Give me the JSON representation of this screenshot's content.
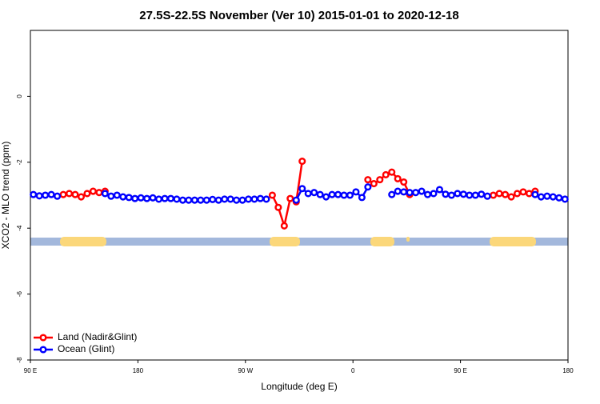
{
  "chart_data": {
    "type": "line",
    "title": "27.5S-22.5S November (Ver 10)   2015-01-01 to 2020-12-18",
    "xlabel": "Longitude (deg E)",
    "ylabel": "XCO2 - MLO trend (ppm)",
    "xlim": [
      90,
      540
    ],
    "ylim": [
      -8,
      2
    ],
    "xticks": [
      {
        "value": 90,
        "label": "90 E"
      },
      180,
      {
        "value": 270,
        "label": "90 W"
      },
      {
        "value": 360,
        "label": "0"
      },
      {
        "value": 450,
        "label": "90 E"
      },
      {
        "value": 540,
        "label": "180"
      }
    ],
    "yticks": [
      -8,
      -6,
      -4,
      -2,
      0
    ],
    "legend": "bottom-left",
    "x": [
      92.5,
      97.5,
      102.5,
      107.5,
      112.5,
      117.5,
      122.5,
      127.5,
      132.5,
      137.5,
      142.5,
      147.5,
      152.5,
      157.5,
      162.5,
      167.5,
      172.5,
      177.5,
      182.5,
      187.5,
      192.5,
      197.5,
      202.5,
      207.5,
      212.5,
      217.5,
      222.5,
      227.5,
      232.5,
      237.5,
      242.5,
      247.5,
      252.5,
      257.5,
      262.5,
      267.5,
      272.5,
      277.5,
      282.5,
      287.5,
      292.5,
      297.5,
      302.5,
      307.5,
      312.5,
      317.5,
      322.5,
      327.5,
      332.5,
      337.5,
      342.5,
      347.5,
      352.5,
      357.5,
      362.5,
      367.5,
      372.5,
      377.5,
      382.5,
      387.5,
      392.5,
      397.5,
      402.5,
      407.5,
      412.5,
      417.5,
      422.5,
      427.5,
      432.5,
      437.5,
      442.5,
      447.5,
      452.5,
      457.5,
      462.5,
      467.5,
      472.5,
      477.5,
      482.5,
      487.5,
      492.5,
      497.5,
      502.5,
      507.5,
      512.5,
      517.5,
      522.5,
      527.5,
      532.5,
      537.5
    ],
    "series": [
      {
        "name": "Land (Nadir&Glint)",
        "color": "#ff0000",
        "values": [
          null,
          null,
          null,
          null,
          null,
          -2.98,
          -2.95,
          -2.98,
          -3.05,
          -2.95,
          -2.88,
          -2.92,
          -2.88,
          null,
          null,
          null,
          null,
          null,
          null,
          null,
          null,
          null,
          null,
          null,
          null,
          null,
          null,
          null,
          null,
          null,
          null,
          null,
          null,
          null,
          null,
          null,
          null,
          null,
          null,
          null,
          -3.0,
          -3.37,
          -3.93,
          -3.1,
          -3.2,
          -1.97,
          null,
          null,
          null,
          null,
          null,
          null,
          null,
          null,
          null,
          null,
          -2.53,
          -2.65,
          -2.53,
          -2.38,
          -2.3,
          -2.5,
          -2.6,
          -2.98,
          null,
          null,
          null,
          null,
          null,
          null,
          null,
          null,
          null,
          null,
          null,
          null,
          null,
          -3.0,
          -2.95,
          -2.98,
          -3.05,
          -2.95,
          -2.9,
          -2.95,
          -2.88,
          null,
          null,
          null,
          null,
          null
        ]
      },
      {
        "name": "Ocean (Glint)",
        "color": "#0000ff",
        "values": [
          -2.98,
          -3.02,
          -3.0,
          -2.98,
          -3.03,
          null,
          null,
          null,
          null,
          null,
          null,
          null,
          -2.95,
          -3.03,
          -3.0,
          -3.05,
          -3.07,
          -3.1,
          -3.08,
          -3.1,
          -3.08,
          -3.12,
          -3.1,
          -3.1,
          -3.12,
          -3.15,
          -3.15,
          -3.15,
          -3.15,
          -3.15,
          -3.13,
          -3.15,
          -3.12,
          -3.12,
          -3.15,
          -3.15,
          -3.12,
          -3.12,
          -3.1,
          -3.12,
          null,
          null,
          null,
          null,
          -3.15,
          -2.8,
          -2.95,
          -2.92,
          -2.98,
          -3.05,
          -2.98,
          -2.98,
          -3.0,
          -3.0,
          -2.9,
          -3.07,
          -2.75,
          null,
          null,
          null,
          -2.98,
          -2.88,
          -2.9,
          -2.92,
          -2.92,
          -2.88,
          -2.98,
          -2.95,
          -2.83,
          -2.97,
          -3.0,
          -2.95,
          -2.97,
          -3.0,
          -3.0,
          -2.97,
          -3.03,
          null,
          null,
          null,
          null,
          null,
          null,
          null,
          -2.98,
          -3.05,
          -3.03,
          -3.05,
          -3.08,
          -3.12
        ]
      }
    ]
  }
}
